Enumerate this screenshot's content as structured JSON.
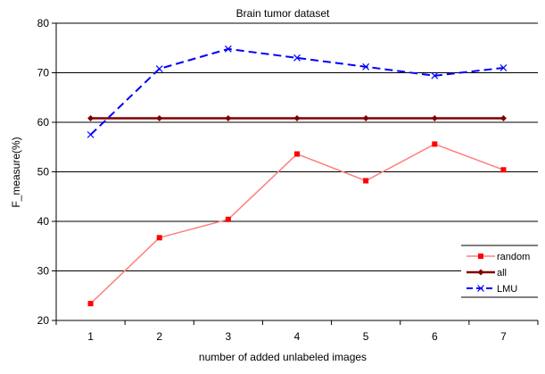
{
  "chart_data": {
    "type": "line",
    "title": "Brain tumor dataset",
    "xlabel": "number of added unlabeled images",
    "ylabel": "F_measure(%)",
    "categories": [
      "1",
      "2",
      "3",
      "4",
      "5",
      "6",
      "7"
    ],
    "ylim": [
      20,
      80
    ],
    "yticks": [
      "20",
      "30",
      "40",
      "50",
      "60",
      "70",
      "80"
    ],
    "grid": "horizontal",
    "legend_position": "bottom-right",
    "series": [
      {
        "name": "random",
        "values": [
          23.4,
          36.7,
          40.4,
          53.6,
          48.2,
          55.6,
          50.4
        ],
        "color": "#ff8080",
        "marker": "square",
        "marker_color": "#ff0000",
        "dash": "solid"
      },
      {
        "name": "all",
        "values": [
          60.8,
          60.8,
          60.8,
          60.8,
          60.8,
          60.8,
          60.8
        ],
        "color": "#800000",
        "marker": "diamond",
        "marker_color": "#800000",
        "dash": "solid"
      },
      {
        "name": "LMU",
        "values": [
          57.5,
          70.8,
          74.8,
          73.0,
          71.2,
          69.4,
          71.0
        ],
        "color": "#0000ff",
        "marker": "cross",
        "marker_color": "#0000ff",
        "dash": "dashed"
      }
    ]
  }
}
